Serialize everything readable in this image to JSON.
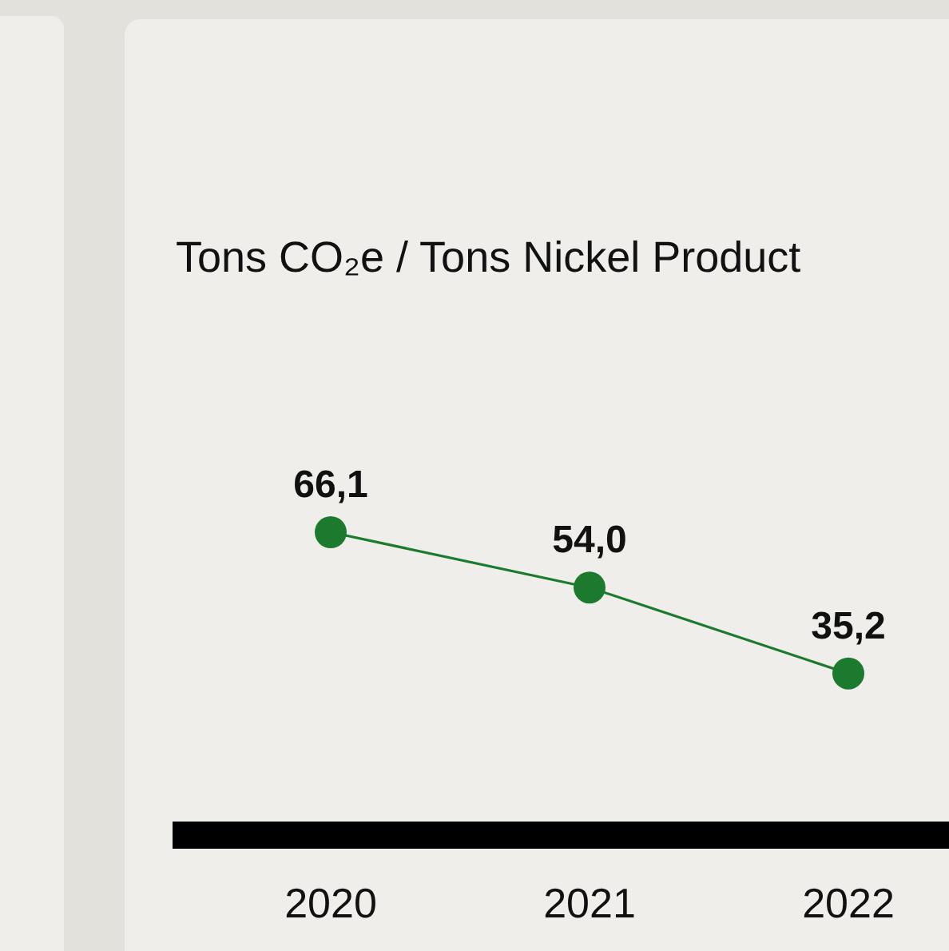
{
  "chart_data": {
    "type": "line",
    "subtitle": "Tons CO₂e / Tons Nickel Product",
    "categories": [
      "2020",
      "2021",
      "2022"
    ],
    "series": [
      {
        "color": "#1b7a2e",
        "values": [
          66.1,
          54.0,
          35.2
        ],
        "value_labels": [
          "66,1",
          "54,0",
          "35,2"
        ]
      }
    ],
    "marker": "circle",
    "line_style": "solid"
  }
}
